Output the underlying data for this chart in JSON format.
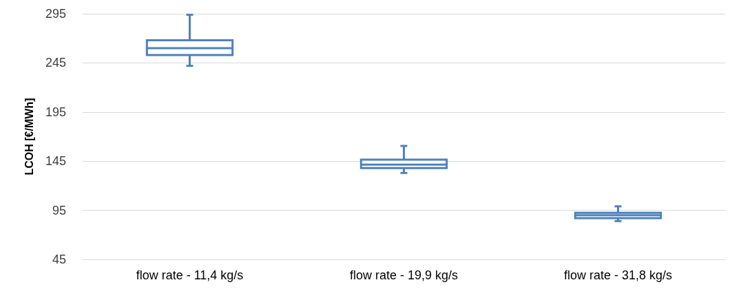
{
  "chart_data": {
    "type": "box",
    "ylabel": "LCOH [€/MWh]",
    "categories": [
      "flow rate - 11,4 kg/s",
      "flow rate - 19,9 kg/s",
      "flow rate - 31,8 kg/s"
    ],
    "series": [
      {
        "color": "#4f81bd",
        "boxes": [
          {
            "low": 242,
            "q1": 253,
            "median": 260,
            "q3": 268,
            "high": 294
          },
          {
            "low": 133,
            "q1": 138,
            "median": 141.5,
            "q3": 146.5,
            "high": 160.5
          },
          {
            "low": 84,
            "q1": 87,
            "median": 90,
            "q3": 92.5,
            "high": 99
          }
        ]
      }
    ],
    "ylim": [
      45,
      295
    ],
    "yticks": [
      45,
      95,
      145,
      195,
      245,
      295
    ],
    "grid": "y"
  }
}
